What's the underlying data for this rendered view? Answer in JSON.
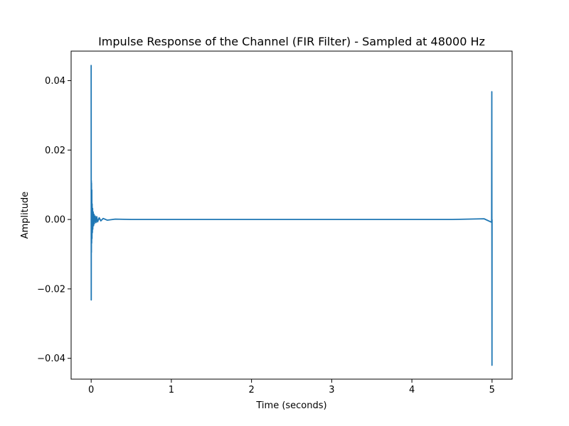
{
  "chart_data": {
    "type": "line",
    "title": "Impulse Response of the Channel (FIR Filter) - Sampled at 48000 Hz",
    "xlabel": "Time (seconds)",
    "ylabel": "Amplitude",
    "xlim": [
      -0.25,
      5.25
    ],
    "ylim": [
      -0.046,
      0.0485
    ],
    "xticks": [
      0,
      1,
      2,
      3,
      4,
      5
    ],
    "xtick_labels": [
      "0",
      "1",
      "2",
      "3",
      "4",
      "5"
    ],
    "yticks": [
      -0.04,
      -0.02,
      0.0,
      0.02,
      0.04
    ],
    "ytick_labels": [
      "−0.04",
      "−0.02",
      "0.00",
      "0.02",
      "0.04"
    ],
    "grid": false,
    "series": [
      {
        "color": "#1f77b4",
        "x": [
          0,
          0.001,
          0.002,
          0.003,
          0.004,
          0.006,
          0.008,
          0.01,
          0.012,
          0.015,
          0.018,
          0.02,
          0.025,
          0.03,
          0.035,
          0.04,
          0.05,
          0.06,
          0.07,
          0.08,
          0.1,
          0.12,
          0.15,
          0.2,
          0.3,
          0.5,
          1.0,
          1.5,
          2.0,
          2.5,
          3.0,
          3.5,
          4.0,
          4.5,
          4.9,
          4.995,
          4.997,
          4.999,
          5.0
        ],
        "y": [
          0.0445,
          -0.0232,
          0.0112,
          -0.0095,
          0.0105,
          -0.0068,
          0.0085,
          -0.0055,
          0.0045,
          -0.0038,
          0.0032,
          -0.0028,
          0.0022,
          -0.0018,
          0.0015,
          -0.0012,
          0.001,
          -0.0009,
          0.0008,
          -0.0007,
          0.0005,
          -0.0004,
          0.0003,
          -0.0002,
          0.0001,
          0.0,
          0.0,
          0.0,
          0.0,
          0.0,
          0.0,
          0.0,
          0.0,
          0.0,
          0.0002,
          -0.0008,
          0.0368,
          -0.042,
          0.0
        ]
      }
    ]
  }
}
